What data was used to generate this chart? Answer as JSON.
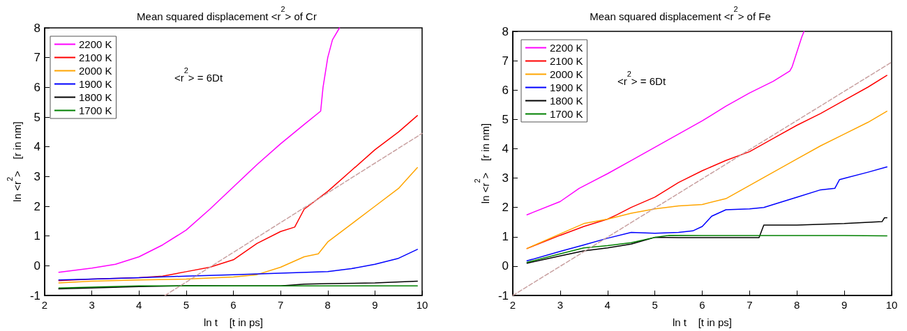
{
  "chart_data": [
    {
      "type": "line",
      "title": "Mean squared displacement <r$^{2}$> of Cr",
      "xlabel": "ln t    [t in ps]",
      "ylabel": "ln <r$^{2}$>    [r in nm]",
      "annotations": [
        "<r$^{2}$> = 6Dt"
      ],
      "xlim": [
        2,
        10
      ],
      "ylim": [
        -1,
        8
      ],
      "xticks": [
        2,
        3,
        4,
        5,
        6,
        7,
        8,
        9,
        10
      ],
      "yticks": [
        -1,
        0,
        1,
        2,
        3,
        4,
        5,
        6,
        7,
        8
      ],
      "grid": false,
      "legend": "top left",
      "marker": "none",
      "series": [
        {
          "name": "2200 K",
          "color": "#ff00ff",
          "x": [
            2.3,
            3,
            3.5,
            4,
            4.5,
            5,
            5.5,
            6,
            6.5,
            7,
            7.5,
            7.85,
            7.9,
            8.0,
            8.1,
            8.25
          ],
          "values": [
            -0.22,
            -0.08,
            0.05,
            0.3,
            0.7,
            1.2,
            1.9,
            2.65,
            3.4,
            4.1,
            4.75,
            5.2,
            6.0,
            7.0,
            7.6,
            8.0
          ]
        },
        {
          "name": "2100 K",
          "color": "#ff0000",
          "x": [
            2.3,
            3,
            4,
            4.5,
            5,
            5.5,
            6,
            6.5,
            7,
            7.3,
            7.5,
            8,
            8.5,
            9,
            9.5,
            9.9
          ],
          "values": [
            -0.5,
            -0.45,
            -0.4,
            -0.35,
            -0.2,
            -0.05,
            0.2,
            0.75,
            1.15,
            1.3,
            1.9,
            2.5,
            3.2,
            3.9,
            4.5,
            5.05
          ]
        },
        {
          "name": "2000 K",
          "color": "#ffa500",
          "x": [
            2.3,
            3,
            4,
            5,
            6,
            6.5,
            7,
            7.5,
            7.8,
            8,
            8.5,
            9,
            9.5,
            9.9
          ],
          "values": [
            -0.58,
            -0.52,
            -0.48,
            -0.45,
            -0.38,
            -0.3,
            -0.05,
            0.3,
            0.4,
            0.8,
            1.4,
            2.0,
            2.6,
            3.3
          ]
        },
        {
          "name": "1900 K",
          "color": "#0000ff",
          "x": [
            2.3,
            3,
            4,
            5,
            6,
            7,
            8,
            8.5,
            9,
            9.5,
            9.9
          ],
          "values": [
            -0.48,
            -0.45,
            -0.4,
            -0.35,
            -0.3,
            -0.25,
            -0.2,
            -0.1,
            0.05,
            0.25,
            0.55
          ]
        },
        {
          "name": "1800 K",
          "color": "#000000",
          "x": [
            2.3,
            3,
            4,
            5,
            6,
            7,
            7.5,
            8,
            9,
            9.9
          ],
          "values": [
            -0.78,
            -0.75,
            -0.7,
            -0.67,
            -0.68,
            -0.68,
            -0.62,
            -0.6,
            -0.58,
            -0.52
          ]
        },
        {
          "name": "1700 K",
          "color": "#008000",
          "x": [
            2.3,
            3,
            4,
            5,
            6,
            7,
            8,
            9,
            9.9
          ],
          "values": [
            -0.75,
            -0.72,
            -0.68,
            -0.68,
            -0.68,
            -0.68,
            -0.68,
            -0.68,
            -0.68
          ]
        },
        {
          "color": "#c8a0a0",
          "line_style": "dashed",
          "x": [
            4.55,
            10
          ],
          "values": [
            -1,
            4.45
          ]
        }
      ]
    },
    {
      "type": "line",
      "title": "Mean squared displacement <r$^{2}$> of Fe",
      "xlabel": "ln t    [t in ps]",
      "ylabel": "ln <r$^{2}$>    [r in nm]",
      "annotations": [
        "<r$^{2}$> = 6Dt"
      ],
      "xlim": [
        2,
        10
      ],
      "ylim": [
        -1,
        8
      ],
      "xticks": [
        2,
        3,
        4,
        5,
        6,
        7,
        8,
        9,
        10
      ],
      "yticks": [
        -1,
        0,
        1,
        2,
        3,
        4,
        5,
        6,
        7,
        8
      ],
      "grid": false,
      "legend": "top left",
      "marker": "none",
      "series": [
        {
          "name": "2200 K",
          "color": "#ff00ff",
          "x": [
            2.3,
            3,
            3.4,
            4,
            4.5,
            5,
            5.5,
            6,
            6.5,
            7,
            7.5,
            7.85,
            7.9,
            8.0,
            8.1,
            8.15
          ],
          "values": [
            1.75,
            2.2,
            2.65,
            3.15,
            3.6,
            4.05,
            4.5,
            4.95,
            5.45,
            5.9,
            6.3,
            6.65,
            6.8,
            7.3,
            7.8,
            8.0
          ]
        },
        {
          "name": "2100 K",
          "color": "#ff0000",
          "x": [
            2.3,
            3,
            3.5,
            4,
            4.2,
            4.5,
            5,
            5.5,
            6,
            6.5,
            7,
            7.5,
            8,
            8.5,
            9,
            9.5,
            9.9
          ],
          "values": [
            0.6,
            1.05,
            1.35,
            1.6,
            1.75,
            2.0,
            2.35,
            2.85,
            3.25,
            3.6,
            3.9,
            4.35,
            4.8,
            5.2,
            5.65,
            6.1,
            6.5
          ]
        },
        {
          "name": "2000 K",
          "color": "#ffa500",
          "x": [
            2.3,
            3,
            3.5,
            4,
            4.5,
            5,
            5.5,
            6,
            6.5,
            7,
            7.5,
            8,
            8.5,
            9,
            9.5,
            9.9
          ],
          "values": [
            0.6,
            1.1,
            1.45,
            1.6,
            1.8,
            1.95,
            2.05,
            2.1,
            2.3,
            2.75,
            3.2,
            3.65,
            4.1,
            4.5,
            4.9,
            5.28
          ]
        },
        {
          "name": "1900 K",
          "color": "#0000ff",
          "x": [
            2.3,
            3,
            3.5,
            4,
            4.5,
            5,
            5.5,
            5.8,
            6,
            6.2,
            6.5,
            7,
            7.3,
            7.5,
            8,
            8.5,
            8.8,
            8.9,
            9.5,
            9.9
          ],
          "values": [
            0.18,
            0.5,
            0.72,
            0.95,
            1.15,
            1.12,
            1.15,
            1.2,
            1.35,
            1.7,
            1.92,
            1.95,
            2.0,
            2.1,
            2.35,
            2.6,
            2.65,
            2.95,
            3.2,
            3.38
          ]
        },
        {
          "name": "1800 K",
          "color": "#000000",
          "x": [
            2.3,
            3,
            3.5,
            4,
            4.5,
            5,
            5.5,
            6,
            7,
            7.2,
            7.3,
            8,
            9,
            9.8,
            9.85,
            9.9
          ],
          "values": [
            0.1,
            0.35,
            0.52,
            0.62,
            0.75,
            0.98,
            0.97,
            0.97,
            0.97,
            0.97,
            1.4,
            1.4,
            1.45,
            1.52,
            1.65,
            1.65
          ]
        },
        {
          "name": "1700 K",
          "color": "#008000",
          "x": [
            2.3,
            3,
            3.5,
            4,
            4.5,
            5,
            5.3,
            6,
            7,
            8,
            9,
            9.9
          ],
          "values": [
            0.13,
            0.42,
            0.62,
            0.7,
            0.8,
            0.98,
            1.05,
            1.04,
            1.04,
            1.04,
            1.04,
            1.03
          ]
        },
        {
          "color": "#c8a0a0",
          "line_style": "dashed",
          "x": [
            2,
            10
          ],
          "values": [
            -1,
            6.95
          ]
        }
      ]
    }
  ]
}
